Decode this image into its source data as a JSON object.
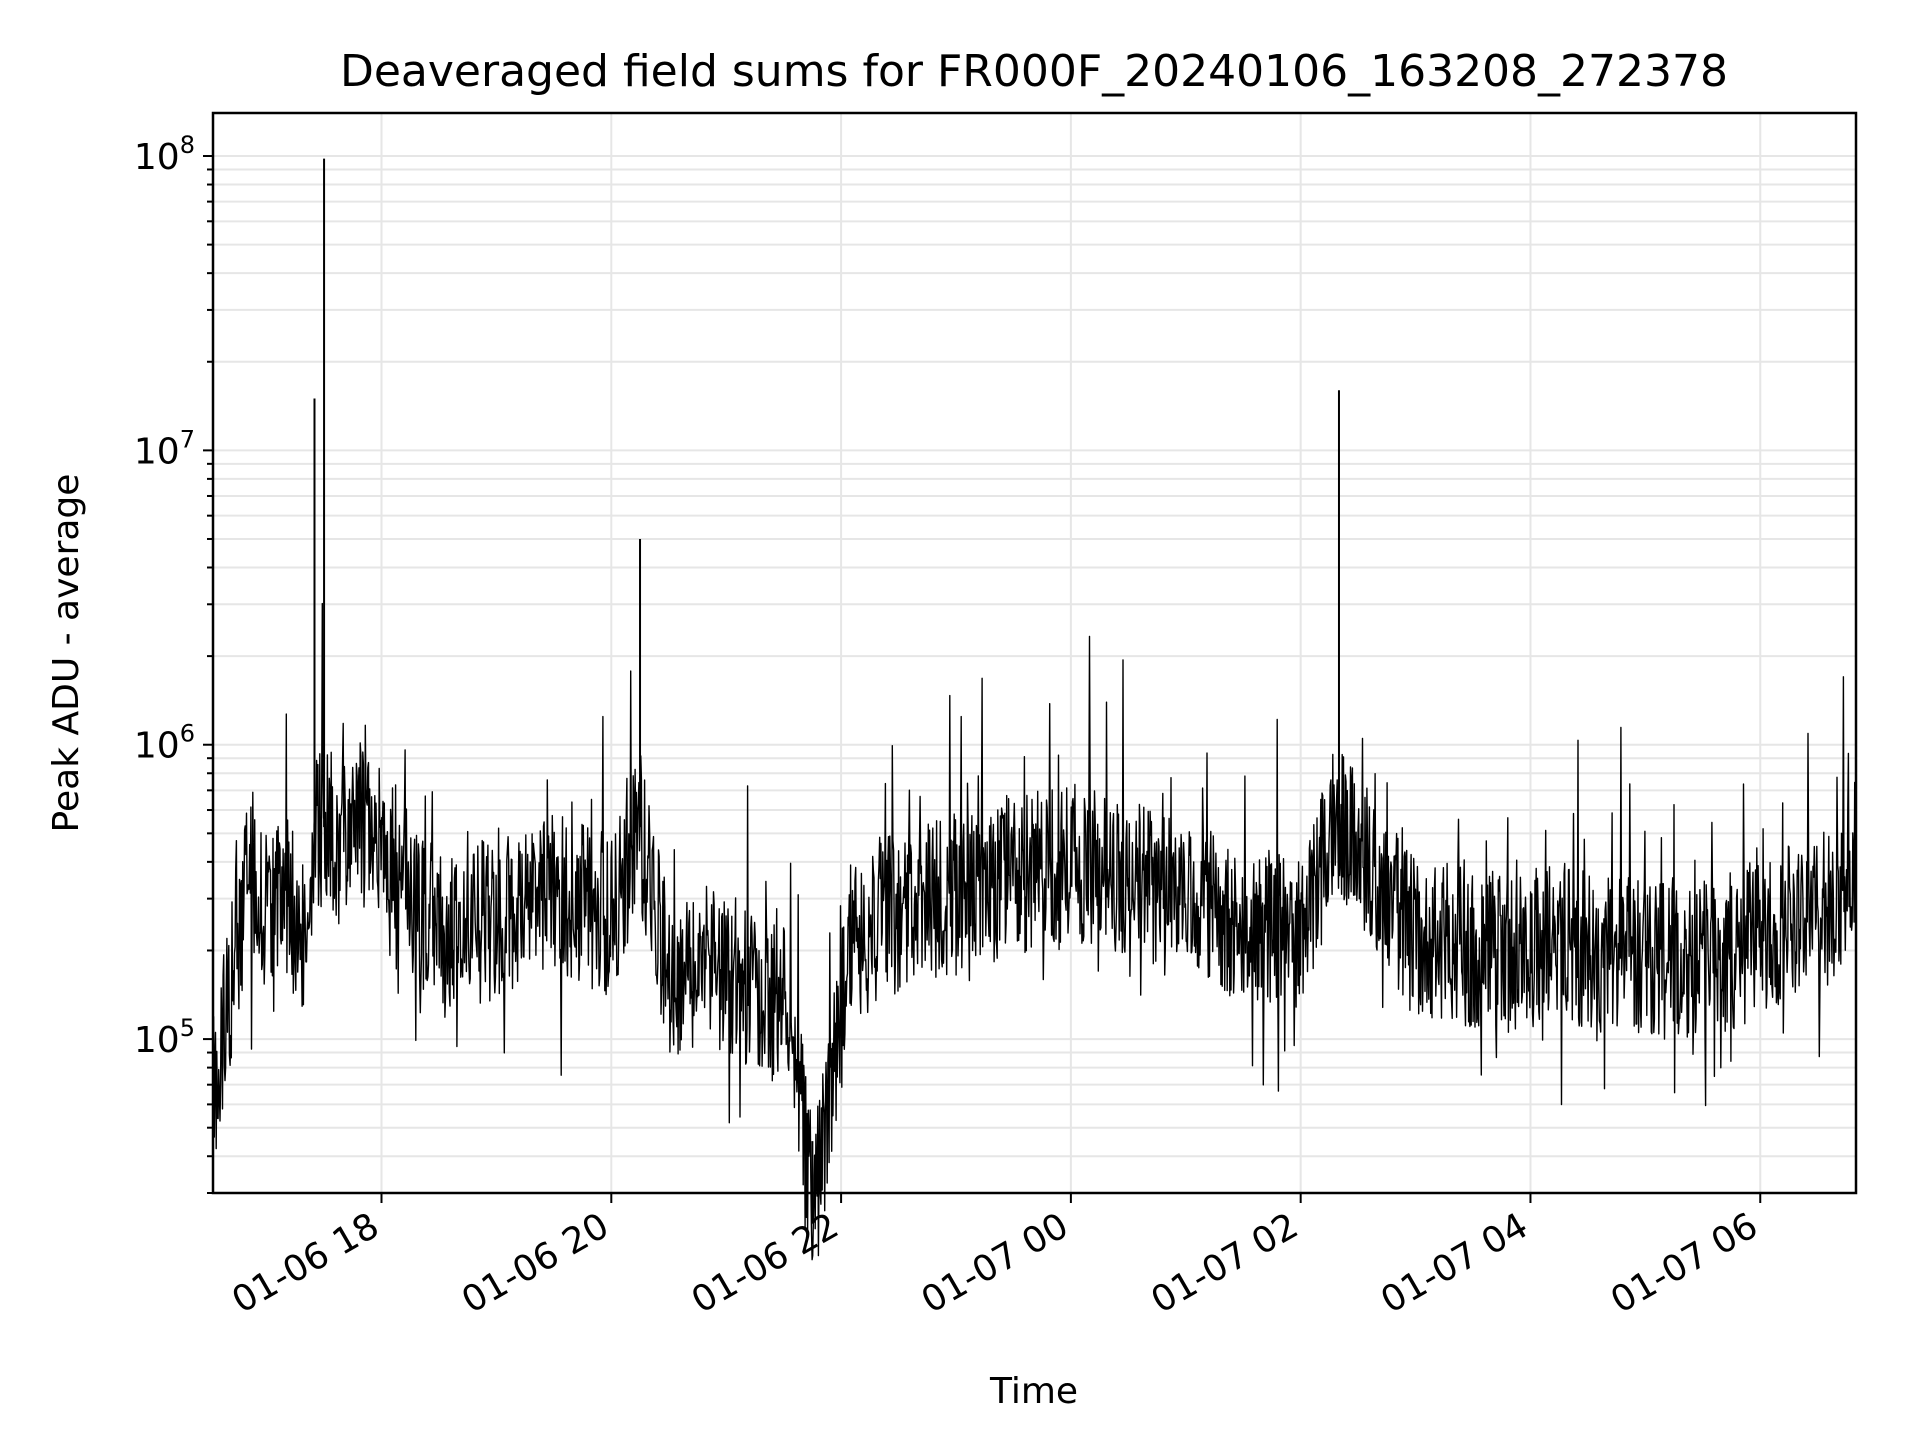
{
  "chart_data": {
    "type": "line",
    "title": "Deaveraged field sums for FR000F_20240106_163208_272378",
    "xlabel": "Time",
    "ylabel": "Peak ADU - average",
    "x_scale": "time",
    "y_scale": "log",
    "xlim": [
      "2024-01-06 16:32",
      "2024-01-07 06:50"
    ],
    "ylim": [
      30000,
      140000000
    ],
    "x_ticks": [
      "01-06 18",
      "01-06 20",
      "01-06 22",
      "01-07 00",
      "01-07 02",
      "01-07 04",
      "01-07 06"
    ],
    "y_ticks": [
      {
        "base": "10",
        "exp": "5"
      },
      {
        "base": "10",
        "exp": "6"
      },
      {
        "base": "10",
        "exp": "7"
      },
      {
        "base": "10",
        "exp": "8"
      }
    ],
    "grid": true,
    "line_color": "#000000",
    "grid_color": "#e6e6e6",
    "series": [
      {
        "x": [
          "2024-01-06 16:35",
          "2024-01-06 16:50",
          "2024-01-06 17:00",
          "2024-01-06 17:10",
          "2024-01-06 17:20",
          "2024-01-06 17:25",
          "2024-01-06 17:30",
          "2024-01-06 17:40",
          "2024-01-06 17:55",
          "2024-01-06 18:10",
          "2024-01-06 18:35",
          "2024-01-06 18:45",
          "2024-01-06 19:00",
          "2024-01-06 19:30",
          "2024-01-06 20:00",
          "2024-01-06 20:15",
          "2024-01-06 20:30",
          "2024-01-06 20:50",
          "2024-01-06 21:15",
          "2024-01-06 21:35",
          "2024-01-06 21:45",
          "2024-01-06 22:05",
          "2024-01-06 22:25",
          "2024-01-06 22:45",
          "2024-01-06 23:10",
          "2024-01-06 23:40",
          "2024-01-07 00:10",
          "2024-01-07 00:45",
          "2024-01-07 01:20",
          "2024-01-07 02:00",
          "2024-01-07 02:20",
          "2024-01-07 03:00",
          "2024-01-07 03:45",
          "2024-01-07 04:20",
          "2024-01-07 05:00",
          "2024-01-07 05:45",
          "2024-01-07 06:20",
          "2024-01-07 06:48"
        ],
        "y": [
          150000,
          700000,
          500000,
          600000,
          400000,
          15000000,
          98000000,
          900000,
          1200000,
          650000,
          400000,
          550000,
          450000,
          600000,
          500000,
          5000000,
          300000,
          350000,
          280000,
          230000,
          45000,
          400000,
          500000,
          550000,
          600000,
          700000,
          750000,
          600000,
          500000,
          450000,
          16000000,
          420000,
          380000,
          400000,
          350000,
          380000,
          480000,
          600000
        ]
      }
    ]
  }
}
